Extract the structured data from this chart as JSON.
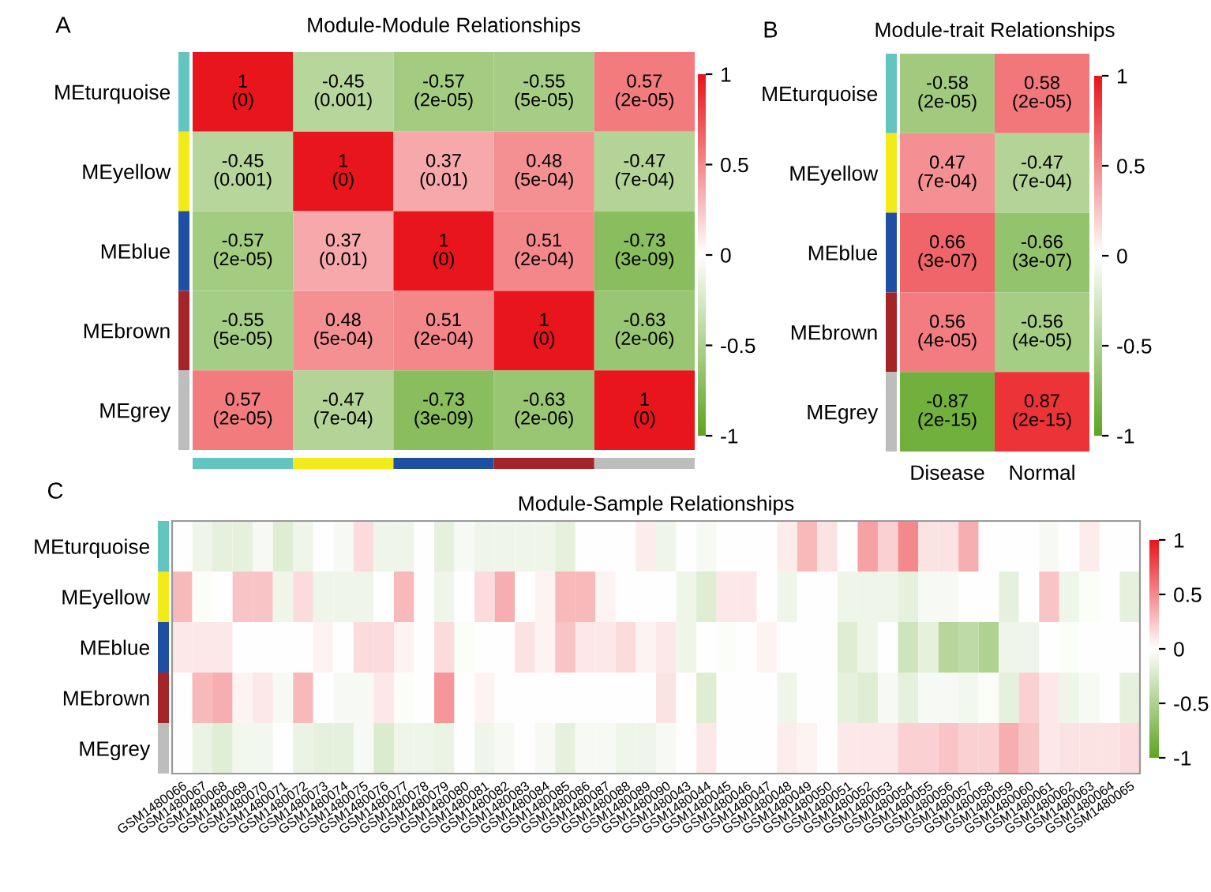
{
  "chart_data": [
    {
      "type": "heatmap",
      "title": "Module-Module Relationships",
      "annotations": [
        "A"
      ],
      "categories": [
        null,
        null,
        null,
        null,
        null
      ],
      "y_categories": [
        "MEturquoise",
        "MEyellow",
        "MEblue",
        "MEbrown",
        "MEgrey"
      ],
      "cells": [
        [
          1,
          -0.45,
          -0.57,
          -0.55,
          0.57
        ],
        [
          -0.45,
          1,
          0.37,
          0.48,
          -0.47
        ],
        [
          -0.57,
          0.37,
          1,
          0.51,
          -0.73
        ],
        [
          -0.55,
          0.48,
          0.51,
          1,
          -0.63
        ],
        [
          0.57,
          -0.47,
          -0.73,
          -0.63,
          1
        ]
      ],
      "cell_labels": [
        [
          "1\n(0)",
          "-0.45\n(0.001)",
          "-0.57\n(2e-05)",
          "-0.55\n(5e-05)",
          "0.57\n(2e-05)"
        ],
        [
          "-0.45\n(0.001)",
          "1\n(0)",
          "0.37\n(0.01)",
          "0.48\n(5e-04)",
          "-0.47\n(7e-04)"
        ],
        [
          "-0.57\n(2e-05)",
          "0.37\n(0.01)",
          "1\n(0)",
          "0.51\n(2e-04)",
          "-0.73\n(3e-09)"
        ],
        [
          "-0.55\n(5e-05)",
          "0.48\n(5e-04)",
          "0.51\n(2e-04)",
          "1\n(0)",
          "-0.63\n(2e-06)"
        ],
        [
          "0.57\n(2e-05)",
          "-0.47\n(7e-04)",
          "-0.73\n(3e-09)",
          "-0.63\n(2e-06)",
          "1\n(0)"
        ]
      ],
      "clim": [
        -1,
        1
      ],
      "cticks": [
        1,
        0.5,
        0,
        -0.5,
        -1
      ]
    },
    {
      "type": "heatmap",
      "title": "Module-trait Relationships",
      "annotations": [
        "B"
      ],
      "categories": [
        "Disease",
        "Normal"
      ],
      "y_categories": [
        "MEturquoise",
        "MEyellow",
        "MEblue",
        "MEbrown",
        "MEgrey"
      ],
      "cells": [
        [
          -0.58,
          0.58
        ],
        [
          0.47,
          -0.47
        ],
        [
          0.66,
          -0.66
        ],
        [
          0.56,
          -0.56
        ],
        [
          -0.87,
          0.87
        ]
      ],
      "cell_labels": [
        [
          "-0.58\n(2e-05)",
          "0.58\n(2e-05)"
        ],
        [
          "0.47\n(7e-04)",
          "-0.47\n(7e-04)"
        ],
        [
          "0.66\n(3e-07)",
          "-0.66\n(3e-07)"
        ],
        [
          "0.56\n(4e-05)",
          "-0.56\n(4e-05)"
        ],
        [
          "-0.87\n(2e-15)",
          "0.87\n(2e-15)"
        ]
      ],
      "clim": [
        -1,
        1
      ],
      "cticks": [
        1,
        0.5,
        0,
        -0.5,
        -1
      ]
    },
    {
      "type": "heatmap",
      "title": "Module-Sample Relationships",
      "annotations": [
        "C"
      ],
      "categories": [
        "GSM1480066",
        "GSM1480067",
        "GSM1480068",
        "GSM1480069",
        "GSM1480070",
        "GSM1480071",
        "GSM1480072",
        "GSM1480073",
        "GSM1480074",
        "GSM1480075",
        "GSM1480076",
        "GSM1480077",
        "GSM1480078",
        "GSM1480079",
        "GSM1480080",
        "GSM1480081",
        "GSM1480082",
        "GSM1480083",
        "GSM1480084",
        "GSM1480085",
        "GSM1480086",
        "GSM1480087",
        "GSM1480088",
        "GSM1480089",
        "GSM1480090",
        "GSM1480043",
        "GSM1480044",
        "GSM1480045",
        "GSM1480046",
        "GSM1480047",
        "GSM1480048",
        "GSM1480049",
        "GSM1480050",
        "GSM1480051",
        "GSM1480052",
        "GSM1480053",
        "GSM1480054",
        "GSM1480055",
        "GSM1480056",
        "GSM1480057",
        "GSM1480058",
        "GSM1480059",
        "GSM1480060",
        "GSM1480061",
        "GSM1480062",
        "GSM1480063",
        "GSM1480064",
        "GSM1480065"
      ],
      "y_categories": [
        "MEturquoise",
        "MEyellow",
        "MEblue",
        "MEbrown",
        "MEgrey"
      ],
      "cells": [
        [
          0,
          -0.1,
          -0.15,
          -0.15,
          -0.05,
          -0.2,
          -0.1,
          0,
          -0.05,
          0.15,
          -0.1,
          -0.1,
          0,
          -0.15,
          -0.05,
          -0.1,
          -0.1,
          -0.1,
          -0.1,
          -0.15,
          0,
          0,
          0,
          0.08,
          -0.1,
          0,
          -0.05,
          0,
          0,
          0,
          0.08,
          0.3,
          0.12,
          0,
          0.4,
          0.2,
          0.5,
          0.12,
          0.12,
          0.35,
          0,
          0,
          0,
          -0.05,
          0,
          0.08,
          0,
          0
        ],
        [
          0.3,
          -0.03,
          0,
          0.25,
          0.25,
          -0.1,
          0.15,
          -0.1,
          -0.1,
          -0.1,
          0,
          0.3,
          0,
          -0.1,
          0,
          0.15,
          0.35,
          0,
          0.05,
          0.3,
          0.3,
          0.05,
          0,
          0,
          0,
          -0.1,
          -0.2,
          0.1,
          0.1,
          0,
          -0.1,
          0,
          0,
          -0.1,
          -0.1,
          -0.1,
          -0.15,
          -0.05,
          -0.05,
          0,
          0,
          -0.15,
          0,
          0.25,
          -0.1,
          -0.03,
          0,
          -0.15
        ],
        [
          0.1,
          0.1,
          0.1,
          0,
          0,
          0,
          0,
          0.05,
          0,
          0.15,
          0.15,
          0.05,
          0,
          0.15,
          -0.03,
          0,
          0,
          0.12,
          0.05,
          0.25,
          0.1,
          0.1,
          0.15,
          0.05,
          0.1,
          -0.1,
          0,
          -0.03,
          0,
          0.05,
          0,
          0,
          0,
          -0.2,
          -0.1,
          0,
          -0.3,
          -0.15,
          -0.45,
          -0.4,
          -0.5,
          -0.1,
          -0.1,
          0,
          -0.03,
          0,
          0,
          0
        ],
        [
          0,
          0.3,
          0.35,
          0.05,
          0.1,
          -0.05,
          0.3,
          0,
          -0.05,
          -0.05,
          0.1,
          -0.03,
          0,
          0.45,
          0,
          0.05,
          0,
          0,
          0,
          0,
          0,
          0,
          0,
          0,
          0.12,
          0,
          -0.2,
          0,
          0,
          0,
          -0.1,
          0,
          0,
          -0.15,
          -0.2,
          -0.05,
          -0.15,
          -0.05,
          -0.05,
          -0.08,
          -0.03,
          -0.15,
          0.2,
          0.1,
          -0.1,
          -0.05,
          0,
          -0.15
        ],
        [
          0,
          -0.12,
          -0.18,
          -0.08,
          -0.08,
          0,
          -0.12,
          -0.15,
          -0.15,
          -0.05,
          -0.22,
          -0.1,
          -0.1,
          -0.12,
          0,
          -0.1,
          -0.05,
          0,
          -0.05,
          -0.15,
          -0.05,
          -0.05,
          -0.1,
          -0.1,
          -0.05,
          0,
          0.1,
          0,
          0,
          0,
          0.08,
          0.05,
          0,
          0.1,
          0.1,
          0.1,
          0.2,
          0.2,
          0.25,
          0.2,
          0.2,
          0.35,
          0.25,
          0.1,
          0.12,
          0.12,
          0.12,
          0.15
        ]
      ],
      "clim": [
        -1,
        1
      ],
      "cticks": [
        1,
        0.5,
        0,
        -0.5,
        -1
      ]
    }
  ]
}
